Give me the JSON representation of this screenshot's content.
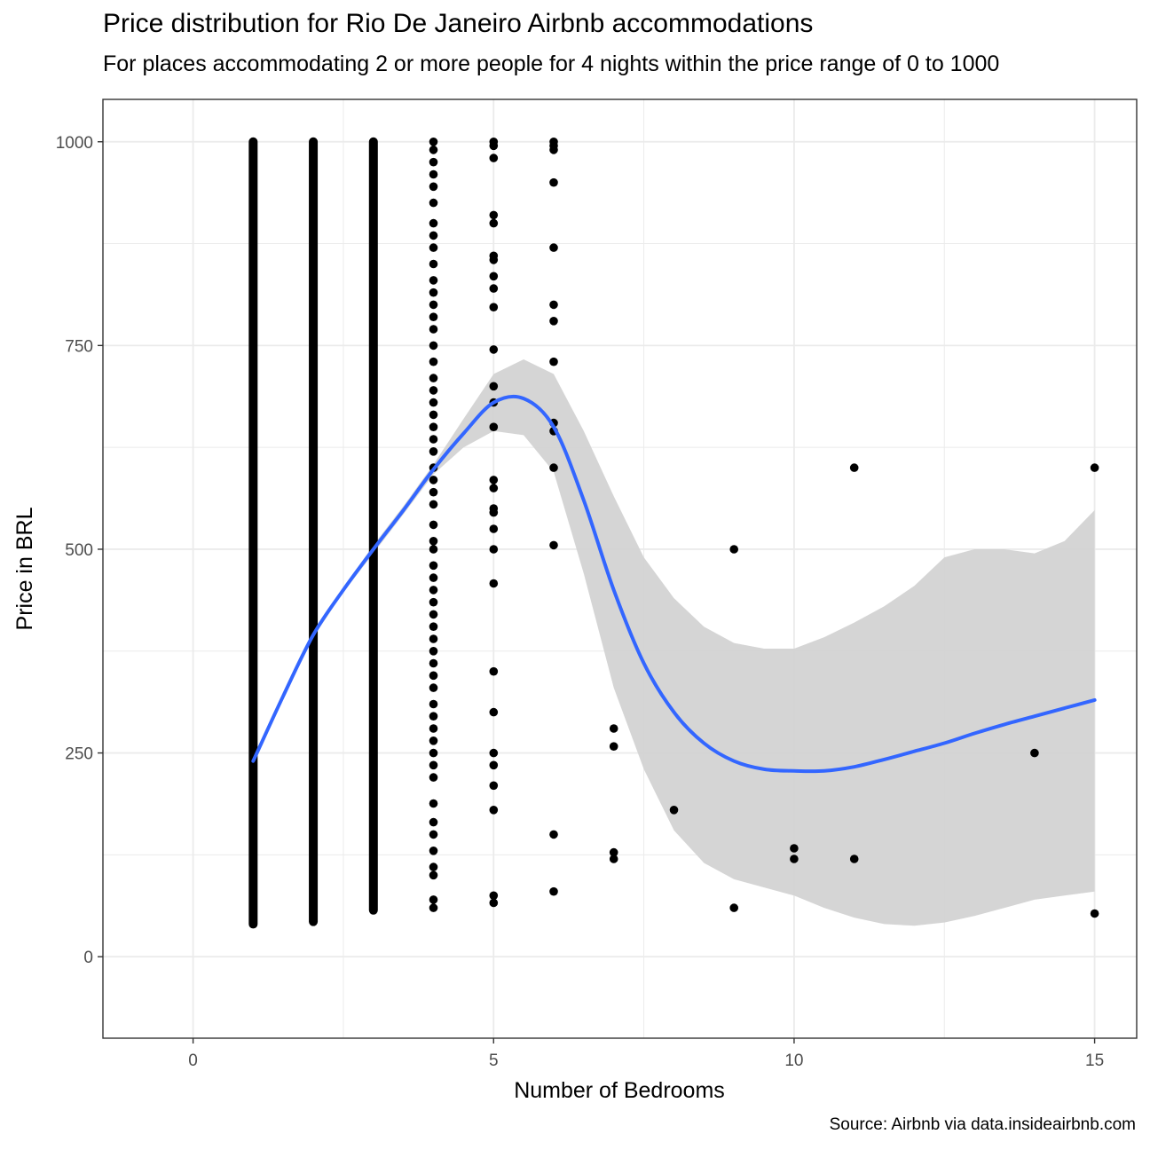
{
  "chart_data": {
    "type": "scatter",
    "title": "Price distribution for Rio De Janeiro Airbnb accommodations",
    "subtitle": "For places accommodating 2 or more people for 4 nights within the price range of 0 to 1000",
    "caption": "Source: Airbnb via data.insideairbnb.com",
    "xlabel": "Number of Bedrooms",
    "ylabel": "Price in BRL",
    "xlim": [
      -1.5,
      15.7
    ],
    "ylim": [
      -100,
      1052
    ],
    "x_ticks": [
      0,
      5,
      10,
      15
    ],
    "y_ticks": [
      0,
      250,
      500,
      750,
      1000
    ],
    "grid": true,
    "legend": "none",
    "colors": {
      "points": "#000000",
      "smooth_line": "#3366ff",
      "confidence_band": "#d3d3d3",
      "panel_border": "#333333",
      "grid": "#ebebeb"
    },
    "dense_columns": [
      {
        "bedrooms": 1,
        "min": 40,
        "max": 1000
      },
      {
        "bedrooms": 2,
        "min": 43,
        "max": 1000
      },
      {
        "bedrooms": 3,
        "min": 57,
        "max": 1000
      }
    ],
    "points": [
      {
        "x": 4,
        "y": 1000
      },
      {
        "x": 4,
        "y": 990
      },
      {
        "x": 4,
        "y": 975
      },
      {
        "x": 4,
        "y": 960
      },
      {
        "x": 4,
        "y": 945
      },
      {
        "x": 4,
        "y": 925
      },
      {
        "x": 4,
        "y": 900
      },
      {
        "x": 4,
        "y": 885
      },
      {
        "x": 4,
        "y": 870
      },
      {
        "x": 4,
        "y": 850
      },
      {
        "x": 4,
        "y": 830
      },
      {
        "x": 4,
        "y": 815
      },
      {
        "x": 4,
        "y": 800
      },
      {
        "x": 4,
        "y": 785
      },
      {
        "x": 4,
        "y": 770
      },
      {
        "x": 4,
        "y": 750
      },
      {
        "x": 4,
        "y": 730
      },
      {
        "x": 4,
        "y": 710
      },
      {
        "x": 4,
        "y": 695
      },
      {
        "x": 4,
        "y": 680
      },
      {
        "x": 4,
        "y": 665
      },
      {
        "x": 4,
        "y": 650
      },
      {
        "x": 4,
        "y": 635
      },
      {
        "x": 4,
        "y": 620
      },
      {
        "x": 4,
        "y": 600
      },
      {
        "x": 4,
        "y": 585
      },
      {
        "x": 4,
        "y": 570
      },
      {
        "x": 4,
        "y": 555
      },
      {
        "x": 4,
        "y": 530
      },
      {
        "x": 4,
        "y": 510
      },
      {
        "x": 4,
        "y": 500
      },
      {
        "x": 4,
        "y": 480
      },
      {
        "x": 4,
        "y": 465
      },
      {
        "x": 4,
        "y": 450
      },
      {
        "x": 4,
        "y": 435
      },
      {
        "x": 4,
        "y": 420
      },
      {
        "x": 4,
        "y": 405
      },
      {
        "x": 4,
        "y": 390
      },
      {
        "x": 4,
        "y": 375
      },
      {
        "x": 4,
        "y": 360
      },
      {
        "x": 4,
        "y": 345
      },
      {
        "x": 4,
        "y": 330
      },
      {
        "x": 4,
        "y": 310
      },
      {
        "x": 4,
        "y": 295
      },
      {
        "x": 4,
        "y": 280
      },
      {
        "x": 4,
        "y": 265
      },
      {
        "x": 4,
        "y": 250
      },
      {
        "x": 4,
        "y": 235
      },
      {
        "x": 4,
        "y": 220
      },
      {
        "x": 4,
        "y": 188
      },
      {
        "x": 4,
        "y": 165
      },
      {
        "x": 4,
        "y": 150
      },
      {
        "x": 4,
        "y": 130
      },
      {
        "x": 4,
        "y": 110
      },
      {
        "x": 4,
        "y": 100
      },
      {
        "x": 4,
        "y": 70
      },
      {
        "x": 4,
        "y": 60
      },
      {
        "x": 5,
        "y": 1000
      },
      {
        "x": 5,
        "y": 995
      },
      {
        "x": 5,
        "y": 980
      },
      {
        "x": 5,
        "y": 910
      },
      {
        "x": 5,
        "y": 900
      },
      {
        "x": 5,
        "y": 860
      },
      {
        "x": 5,
        "y": 855
      },
      {
        "x": 5,
        "y": 835
      },
      {
        "x": 5,
        "y": 820
      },
      {
        "x": 5,
        "y": 797
      },
      {
        "x": 5,
        "y": 745
      },
      {
        "x": 5,
        "y": 700
      },
      {
        "x": 5,
        "y": 680
      },
      {
        "x": 5,
        "y": 650
      },
      {
        "x": 5,
        "y": 585
      },
      {
        "x": 5,
        "y": 575
      },
      {
        "x": 5,
        "y": 550
      },
      {
        "x": 5,
        "y": 545
      },
      {
        "x": 5,
        "y": 525
      },
      {
        "x": 5,
        "y": 500
      },
      {
        "x": 5,
        "y": 458
      },
      {
        "x": 5,
        "y": 350
      },
      {
        "x": 5,
        "y": 300
      },
      {
        "x": 5,
        "y": 250
      },
      {
        "x": 5,
        "y": 235
      },
      {
        "x": 5,
        "y": 210
      },
      {
        "x": 5,
        "y": 180
      },
      {
        "x": 5,
        "y": 75
      },
      {
        "x": 5,
        "y": 66
      },
      {
        "x": 6,
        "y": 1000
      },
      {
        "x": 6,
        "y": 995
      },
      {
        "x": 6,
        "y": 990
      },
      {
        "x": 6,
        "y": 950
      },
      {
        "x": 6,
        "y": 870
      },
      {
        "x": 6,
        "y": 800
      },
      {
        "x": 6,
        "y": 780
      },
      {
        "x": 6,
        "y": 730
      },
      {
        "x": 6,
        "y": 655
      },
      {
        "x": 6,
        "y": 645
      },
      {
        "x": 6,
        "y": 600
      },
      {
        "x": 6,
        "y": 505
      },
      {
        "x": 6,
        "y": 150
      },
      {
        "x": 6,
        "y": 80
      },
      {
        "x": 7,
        "y": 280
      },
      {
        "x": 7,
        "y": 258
      },
      {
        "x": 7,
        "y": 128
      },
      {
        "x": 7,
        "y": 120
      },
      {
        "x": 8,
        "y": 180
      },
      {
        "x": 9,
        "y": 500
      },
      {
        "x": 9,
        "y": 60
      },
      {
        "x": 10,
        "y": 133
      },
      {
        "x": 10,
        "y": 120
      },
      {
        "x": 11,
        "y": 600
      },
      {
        "x": 11,
        "y": 120
      },
      {
        "x": 14,
        "y": 250
      },
      {
        "x": 15,
        "y": 600
      },
      {
        "x": 15,
        "y": 53
      }
    ],
    "smooth": {
      "x": [
        1,
        1.5,
        2,
        2.5,
        3,
        3.5,
        4,
        4.5,
        5,
        5.5,
        6,
        6.5,
        7,
        7.5,
        8,
        8.5,
        9,
        9.5,
        10,
        10.5,
        11,
        11.5,
        12,
        12.5,
        13,
        13.5,
        14,
        14.5,
        15
      ],
      "y": [
        240,
        320,
        395,
        450,
        500,
        548,
        598,
        642,
        680,
        685,
        650,
        560,
        450,
        360,
        300,
        262,
        240,
        230,
        228,
        228,
        233,
        242,
        252,
        262,
        274,
        285,
        295,
        305,
        315
      ],
      "lower": [
        238,
        318,
        392,
        447,
        495,
        543,
        592,
        625,
        645,
        640,
        595,
        470,
        330,
        230,
        155,
        115,
        95,
        85,
        75,
        60,
        48,
        40,
        38,
        42,
        50,
        60,
        70,
        75,
        80
      ],
      "upper": [
        242,
        322,
        398,
        453,
        505,
        553,
        604,
        660,
        715,
        733,
        715,
        645,
        565,
        490,
        440,
        405,
        385,
        378,
        378,
        392,
        410,
        430,
        455,
        490,
        500,
        500,
        495,
        510,
        548
      ]
    }
  }
}
